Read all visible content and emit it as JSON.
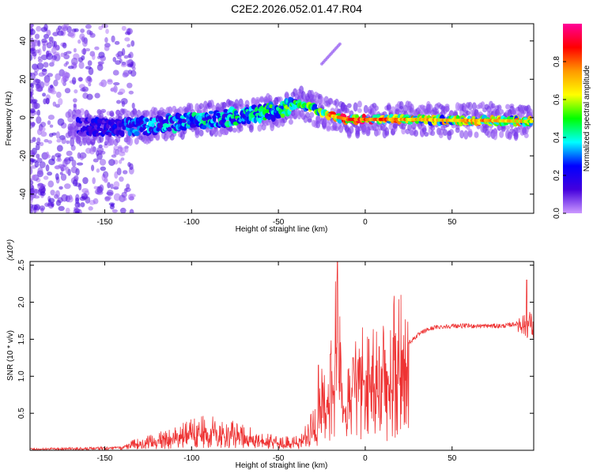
{
  "title": "C2E2.2026.052.01.47.R04",
  "colorbar": {
    "label": "Normalized spectral amplitude",
    "ticks": [
      "0.0",
      "0.2",
      "0.4",
      "0.6",
      "0.8"
    ],
    "stops": [
      "#cc99ff",
      "#4400dd",
      "#0000ff",
      "#00ffff",
      "#00ff00",
      "#ffff00",
      "#ff9900",
      "#ff0000",
      "#ff0099"
    ]
  },
  "chart_data": [
    {
      "type": "heatmap",
      "xlabel": "Height of straight line (km)",
      "ylabel": "Frequency (Hz)",
      "xlim": [
        -193,
        97
      ],
      "ylim": [
        -50,
        49
      ],
      "xticks": [
        -150,
        -100,
        -50,
        0,
        50
      ],
      "xtick_labels": [
        "-150",
        "-100",
        "-50",
        "0",
        "50"
      ],
      "yticks": [
        -40,
        -20,
        0,
        20,
        40
      ],
      "ytick_labels": [
        "-40",
        "-20",
        "0",
        "20",
        "40"
      ],
      "ridge": {
        "x": [
          -160,
          -140,
          -120,
          -100,
          -80,
          -60,
          -45,
          -38,
          -30,
          -20,
          -10,
          0,
          10,
          30,
          50,
          70,
          90,
          97
        ],
        "y": [
          -5,
          -5,
          -4,
          -2,
          0,
          2,
          5,
          7,
          5,
          1,
          -1,
          -1,
          -1,
          -1,
          -1.5,
          -1.5,
          -2,
          -2
        ],
        "amplitude": [
          0.2,
          0.3,
          0.35,
          0.4,
          0.42,
          0.45,
          0.55,
          0.6,
          0.55,
          0.75,
          0.9,
          0.85,
          0.8,
          0.7,
          0.72,
          0.75,
          0.7,
          0.6
        ]
      },
      "color_range": [
        0,
        1
      ]
    },
    {
      "type": "line",
      "xlabel": "Height of straight line (km)",
      "ylabel": "SNR (10 * v/v)",
      "y_multiplier": "(x10⁴)",
      "xlim": [
        -193,
        97
      ],
      "ylim": [
        0,
        2.55
      ],
      "xticks": [
        -150,
        -100,
        -50,
        0,
        50
      ],
      "xtick_labels": [
        "-150",
        "-100",
        "-50",
        "0",
        "50"
      ],
      "yticks": [
        0.5,
        1.0,
        1.5,
        2.0,
        2.5
      ],
      "ytick_labels": [
        "0.5",
        "1.0",
        "1.5",
        "2.0",
        "2.5"
      ],
      "color": "#ee3333",
      "envelope": {
        "x": [
          -193,
          -160,
          -140,
          -132,
          -120,
          -110,
          -100,
          -90,
          -80,
          -70,
          -60,
          -50,
          -40,
          -35,
          -30,
          -27,
          -25,
          -22,
          -20,
          -18,
          -16,
          -12,
          -8,
          -4,
          0,
          4,
          8,
          12,
          16,
          20,
          25,
          30,
          35,
          40,
          50,
          60,
          70,
          80,
          85,
          90,
          93,
          95,
          97
        ],
        "y": [
          0.02,
          0.03,
          0.05,
          0.1,
          0.15,
          0.2,
          0.28,
          0.3,
          0.28,
          0.22,
          0.16,
          0.12,
          0.12,
          0.2,
          0.35,
          0.55,
          0.75,
          0.6,
          0.9,
          1.3,
          1.6,
          0.6,
          0.8,
          1.0,
          1.1,
          1.05,
          1.1,
          1.2,
          1.3,
          1.35,
          1.45,
          1.55,
          1.62,
          1.66,
          1.68,
          1.68,
          1.68,
          1.68,
          1.7,
          1.72,
          1.65,
          1.75,
          1.6
        ]
      },
      "spikes": [
        {
          "x": -16,
          "y": 2.55
        },
        {
          "x": 93,
          "y": 2.3
        },
        {
          "x": -27,
          "y": 1.15
        },
        {
          "x": -20,
          "y": 1.3
        },
        {
          "x": -7,
          "y": 1.25
        },
        {
          "x": 2,
          "y": 1.5
        },
        {
          "x": 8,
          "y": 1.4
        }
      ]
    }
  ]
}
